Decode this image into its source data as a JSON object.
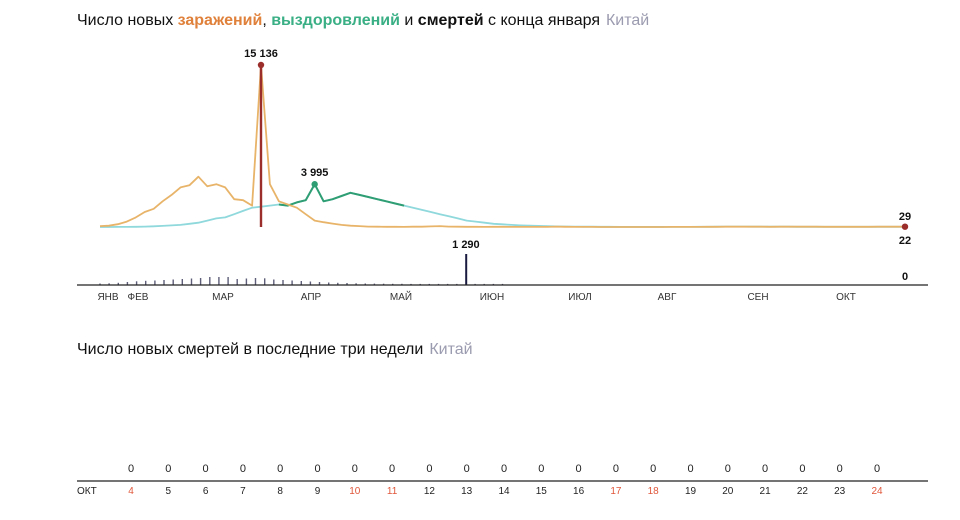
{
  "chart1": {
    "title": {
      "prefix": "Число новых ",
      "infections": "заражений",
      "sep": ", ",
      "recoveries": "выздоровлений",
      "and": " и ",
      "deaths": "смертей",
      "suffix": " с конца января",
      "country": "Китай"
    },
    "colors": {
      "infections": "#e8b46a",
      "recoveries": "#8fd8dc",
      "recoveries_peak": "#2f9e74",
      "deaths": "#1a1a40",
      "accent": "#9b2d2a"
    }
  },
  "chart2": {
    "title": {
      "main": "Число новых смертей в последние три недели",
      "country": "Китай"
    }
  },
  "chart_data": [
    {
      "type": "line",
      "x_tick_labels": [
        "ЯНВ",
        "ФЕВ",
        "МАР",
        "АПР",
        "МАЙ",
        "ИЮН",
        "ИЮЛ",
        "АВГ",
        "СЕН",
        "ОКТ"
      ],
      "annotations": [
        {
          "label": "15 136",
          "series": "infections"
        },
        {
          "label": "3 995",
          "series": "recoveries"
        },
        {
          "label": "1 290",
          "series": "deaths"
        },
        {
          "label": "29",
          "series": "infections"
        },
        {
          "label": "22",
          "series": "recoveries"
        },
        {
          "label": "0",
          "series": "deaths"
        }
      ],
      "series": [
        {
          "key": "infections",
          "values": [
            80,
            120,
            260,
            500,
            900,
            1400,
            1700,
            2400,
            3000,
            3700,
            3900,
            4700,
            3800,
            4000,
            3700,
            2600,
            2500,
            2000,
            15136,
            4000,
            2400,
            2100,
            1800,
            1200,
            600,
            450,
            320,
            200,
            120,
            80,
            40,
            30,
            20,
            15,
            10,
            25,
            30,
            60,
            80,
            40,
            30,
            20,
            15,
            10,
            15,
            20,
            10,
            8,
            6,
            5,
            8,
            40,
            20,
            10,
            5,
            5,
            4,
            4,
            3,
            3,
            2,
            2,
            3,
            4,
            6,
            8,
            10,
            12,
            15,
            20,
            25,
            30,
            35,
            30,
            25,
            20,
            25,
            30,
            28,
            26,
            24,
            22,
            20,
            18,
            16,
            20,
            22,
            24,
            26,
            28,
            29
          ]
        },
        {
          "key": "recoveries",
          "values": [
            2,
            3,
            5,
            8,
            20,
            40,
            70,
            100,
            150,
            200,
            300,
            400,
            600,
            800,
            900,
            1200,
            1500,
            1800,
            1900,
            2000,
            2100,
            2000,
            2300,
            2500,
            3995,
            2400,
            2600,
            2900,
            3200,
            3000,
            2800,
            2600,
            2400,
            2200,
            2000,
            1800,
            1600,
            1400,
            1200,
            1000,
            800,
            600,
            500,
            400,
            300,
            250,
            200,
            150,
            120,
            100,
            80,
            60,
            50,
            40,
            30,
            25,
            20,
            15,
            10,
            8,
            6,
            5,
            5,
            6,
            8,
            10,
            14,
            18,
            22,
            28,
            34,
            40,
            36,
            32,
            30,
            28,
            26,
            24,
            22,
            22,
            22,
            22,
            22,
            22,
            22,
            22,
            22,
            22,
            22,
            22,
            22
          ]
        },
        {
          "key": "deaths",
          "values": [
            10,
            15,
            25,
            40,
            55,
            65,
            70,
            80,
            90,
            100,
            110,
            120,
            140,
            150,
            143,
            100,
            110,
            120,
            114,
            90,
            80,
            70,
            60,
            50,
            40,
            30,
            25,
            20,
            15,
            10,
            8,
            6,
            5,
            4,
            3,
            3,
            2,
            2,
            1,
            1,
            1290,
            1,
            1,
            1,
            1,
            0,
            0,
            0,
            0,
            0,
            0,
            0,
            0,
            0,
            0,
            0,
            0,
            0,
            0,
            0,
            0,
            0,
            0,
            0,
            0,
            0,
            0,
            0,
            0,
            0,
            0,
            0,
            0,
            0,
            0,
            0,
            0,
            0,
            0,
            0,
            0,
            0,
            0,
            0,
            0,
            0,
            0,
            0,
            0
          ]
        }
      ]
    },
    {
      "type": "bar",
      "month_label": "ОКТ",
      "categories": [
        "4",
        "5",
        "6",
        "7",
        "8",
        "9",
        "10",
        "11",
        "12",
        "13",
        "14",
        "15",
        "16",
        "17",
        "18",
        "19",
        "20",
        "21",
        "22",
        "23",
        "24"
      ],
      "values": [
        0,
        0,
        0,
        0,
        0,
        0,
        0,
        0,
        0,
        0,
        0,
        0,
        0,
        0,
        0,
        0,
        0,
        0,
        0,
        0,
        0
      ],
      "weekend": [
        true,
        false,
        false,
        false,
        false,
        false,
        true,
        true,
        false,
        false,
        false,
        false,
        false,
        true,
        true,
        false,
        false,
        false,
        false,
        false,
        true
      ],
      "colors": {
        "weekday": "#222222",
        "weekend": "#e0563a"
      }
    }
  ]
}
